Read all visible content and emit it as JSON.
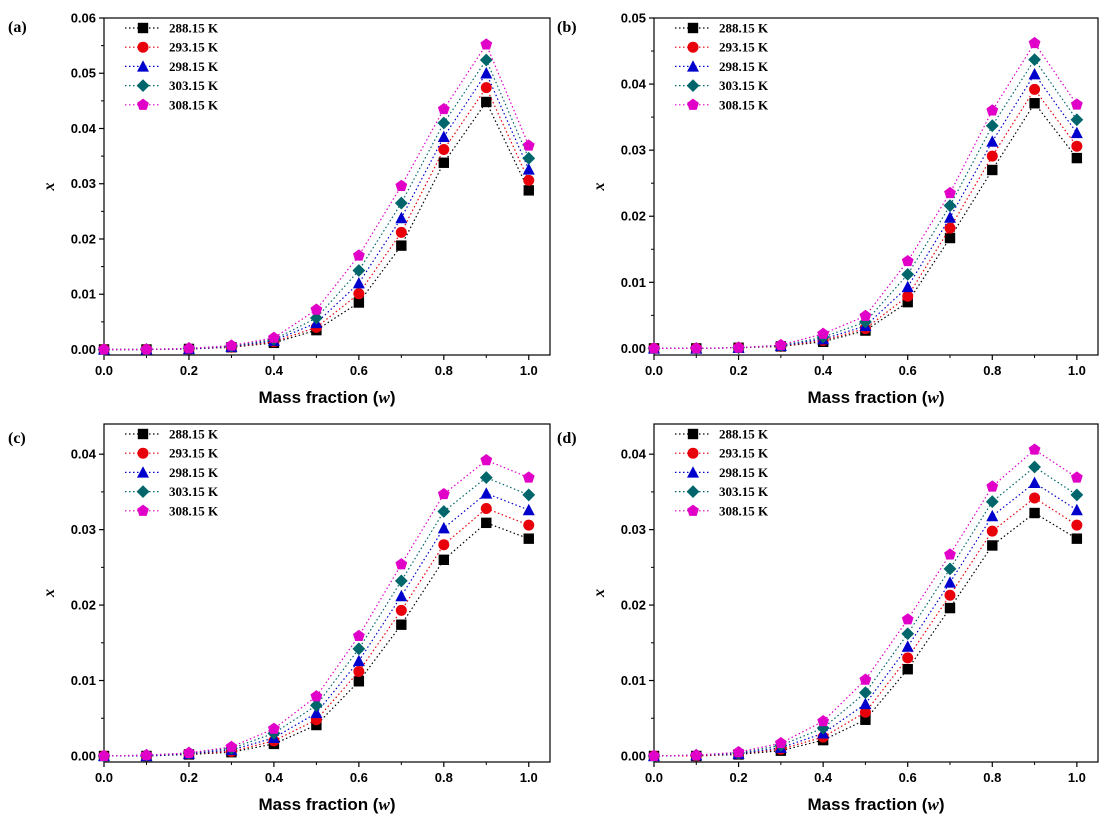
{
  "figure": {
    "xlabel_text": "Mass fraction (",
    "xlabel_var": "w",
    "xlabel_close": ")",
    "ylabel": "x"
  },
  "legend": [
    {
      "name": "288.15 K",
      "color": "#000000",
      "marker": "square"
    },
    {
      "name": "293.15 K",
      "color": "#e8000b",
      "marker": "circle"
    },
    {
      "name": "298.15 K",
      "color": "#0000cc",
      "marker": "triangle"
    },
    {
      "name": "303.15 K",
      "color": "#00666b",
      "marker": "diamond"
    },
    {
      "name": "308.15 K",
      "color": "#e000c8",
      "marker": "pentagon"
    }
  ],
  "chart_data": [
    {
      "panel": "(a)",
      "type": "line",
      "line_style": "dotted",
      "xlabel": "Mass fraction (w)",
      "ylabel": "x",
      "xlim": [
        0.0,
        1.05
      ],
      "ylim": [
        -0.001,
        0.06
      ],
      "xticks": [
        "0.0",
        "0.2",
        "0.4",
        "0.6",
        "0.8",
        "1.0"
      ],
      "yticks": [
        "0.00",
        "0.01",
        "0.02",
        "0.03",
        "0.04",
        "0.05",
        "0.06"
      ],
      "x": [
        0.0,
        0.1,
        0.2,
        0.3,
        0.4,
        0.5,
        0.6,
        0.7,
        0.8,
        0.9,
        1.0
      ],
      "legend_position": "top-left",
      "series": [
        {
          "name": "288.15 K",
          "values": [
            0.0,
            0.0,
            0.0001,
            0.0004,
            0.0012,
            0.0035,
            0.0085,
            0.0188,
            0.0338,
            0.0448,
            0.0288
          ]
        },
        {
          "name": "293.15 K",
          "values": [
            0.0,
            0.0,
            0.0001,
            0.0004,
            0.0014,
            0.004,
            0.0101,
            0.0212,
            0.0362,
            0.0474,
            0.0306
          ]
        },
        {
          "name": "298.15 K",
          "values": [
            0.0,
            0.0,
            0.0001,
            0.0005,
            0.0016,
            0.0048,
            0.012,
            0.0238,
            0.0385,
            0.05,
            0.0326
          ]
        },
        {
          "name": "303.15 K",
          "values": [
            0.0,
            0.0,
            0.0002,
            0.0006,
            0.0018,
            0.0057,
            0.0143,
            0.0265,
            0.041,
            0.0524,
            0.0346
          ]
        },
        {
          "name": "308.15 K",
          "values": [
            0.0,
            0.0,
            0.0002,
            0.0007,
            0.0021,
            0.0072,
            0.017,
            0.0296,
            0.0435,
            0.0552,
            0.0369
          ]
        }
      ]
    },
    {
      "panel": "(b)",
      "type": "line",
      "line_style": "dotted",
      "xlabel": "Mass fraction (w)",
      "ylabel": "x",
      "xlim": [
        0.0,
        1.05
      ],
      "ylim": [
        -0.001,
        0.05
      ],
      "xticks": [
        "0.0",
        "0.2",
        "0.4",
        "0.6",
        "0.8",
        "1.0"
      ],
      "yticks": [
        "0.00",
        "0.01",
        "0.02",
        "0.03",
        "0.04",
        "0.05"
      ],
      "x": [
        0.0,
        0.1,
        0.2,
        0.3,
        0.4,
        0.5,
        0.6,
        0.7,
        0.8,
        0.9,
        1.0
      ],
      "legend_position": "top-left",
      "series": [
        {
          "name": "288.15 K",
          "values": [
            0.0,
            0.0,
            0.0001,
            0.0003,
            0.001,
            0.0027,
            0.007,
            0.0167,
            0.027,
            0.0371,
            0.0288
          ]
        },
        {
          "name": "293.15 K",
          "values": [
            0.0,
            0.0,
            0.0001,
            0.0003,
            0.0012,
            0.003,
            0.0079,
            0.0182,
            0.0291,
            0.0392,
            0.0306
          ]
        },
        {
          "name": "298.15 K",
          "values": [
            0.0,
            0.0,
            0.0001,
            0.0004,
            0.0014,
            0.0034,
            0.0093,
            0.0198,
            0.0313,
            0.0415,
            0.0326
          ]
        },
        {
          "name": "303.15 K",
          "values": [
            0.0,
            0.0,
            0.0001,
            0.0004,
            0.0017,
            0.004,
            0.0112,
            0.0216,
            0.0337,
            0.0437,
            0.0346
          ]
        },
        {
          "name": "308.15 K",
          "values": [
            0.0,
            0.0,
            0.0001,
            0.0005,
            0.0022,
            0.0049,
            0.0132,
            0.0235,
            0.036,
            0.0462,
            0.0369
          ]
        }
      ]
    },
    {
      "panel": "(c)",
      "type": "line",
      "line_style": "dotted",
      "xlabel": "Mass fraction (w)",
      "ylabel": "x",
      "xlim": [
        0.0,
        1.05
      ],
      "ylim": [
        -0.0008,
        0.044
      ],
      "xticks": [
        "0.0",
        "0.2",
        "0.4",
        "0.6",
        "0.8",
        "1.0"
      ],
      "yticks": [
        "0.00",
        "0.01",
        "0.02",
        "0.03",
        "0.04"
      ],
      "x": [
        0.0,
        0.1,
        0.2,
        0.3,
        0.4,
        0.5,
        0.6,
        0.7,
        0.8,
        0.9,
        1.0
      ],
      "legend_position": "top-left",
      "series": [
        {
          "name": "288.15 K",
          "values": [
            0.0,
            0.0,
            0.0002,
            0.0005,
            0.0016,
            0.0041,
            0.0099,
            0.0174,
            0.026,
            0.0309,
            0.0288
          ]
        },
        {
          "name": "293.15 K",
          "values": [
            0.0,
            0.0,
            0.0003,
            0.0006,
            0.002,
            0.0048,
            0.0112,
            0.0193,
            0.028,
            0.0328,
            0.0306
          ]
        },
        {
          "name": "298.15 K",
          "values": [
            0.0,
            0.0,
            0.0003,
            0.0008,
            0.0024,
            0.0057,
            0.0126,
            0.0212,
            0.0302,
            0.0348,
            0.0326
          ]
        },
        {
          "name": "303.15 K",
          "values": [
            0.0,
            0.0001,
            0.0004,
            0.001,
            0.003,
            0.0067,
            0.0142,
            0.0232,
            0.0324,
            0.0369,
            0.0346
          ]
        },
        {
          "name": "308.15 K",
          "values": [
            0.0,
            0.0001,
            0.0004,
            0.0012,
            0.0036,
            0.0079,
            0.0159,
            0.0254,
            0.0347,
            0.0392,
            0.0369
          ]
        }
      ]
    },
    {
      "panel": "(d)",
      "type": "line",
      "line_style": "dotted",
      "xlabel": "Mass fraction (w)",
      "ylabel": "x",
      "xlim": [
        0.0,
        1.05
      ],
      "ylim": [
        -0.0008,
        0.044
      ],
      "xticks": [
        "0.0",
        "0.2",
        "0.4",
        "0.6",
        "0.8",
        "1.0"
      ],
      "yticks": [
        "0.00",
        "0.01",
        "0.02",
        "0.03",
        "0.04"
      ],
      "x": [
        0.0,
        0.1,
        0.2,
        0.3,
        0.4,
        0.5,
        0.6,
        0.7,
        0.8,
        0.9,
        1.0
      ],
      "legend_position": "top-left",
      "series": [
        {
          "name": "288.15 K",
          "values": [
            0.0,
            0.0,
            0.0002,
            0.0007,
            0.0021,
            0.0048,
            0.0115,
            0.0196,
            0.0279,
            0.0322,
            0.0288
          ]
        },
        {
          "name": "293.15 K",
          "values": [
            0.0,
            0.0,
            0.0003,
            0.0009,
            0.0025,
            0.0058,
            0.013,
            0.0213,
            0.0298,
            0.0342,
            0.0306
          ]
        },
        {
          "name": "298.15 K",
          "values": [
            0.0,
            0.0001,
            0.0003,
            0.0011,
            0.003,
            0.0069,
            0.0145,
            0.023,
            0.0318,
            0.0362,
            0.0326
          ]
        },
        {
          "name": "303.15 K",
          "values": [
            0.0,
            0.0001,
            0.0004,
            0.0014,
            0.0037,
            0.0084,
            0.0162,
            0.0248,
            0.0337,
            0.0383,
            0.0346
          ]
        },
        {
          "name": "308.15 K",
          "values": [
            0.0,
            0.0001,
            0.0005,
            0.0017,
            0.0046,
            0.0101,
            0.0181,
            0.0267,
            0.0357,
            0.0406,
            0.0369
          ]
        }
      ]
    }
  ]
}
